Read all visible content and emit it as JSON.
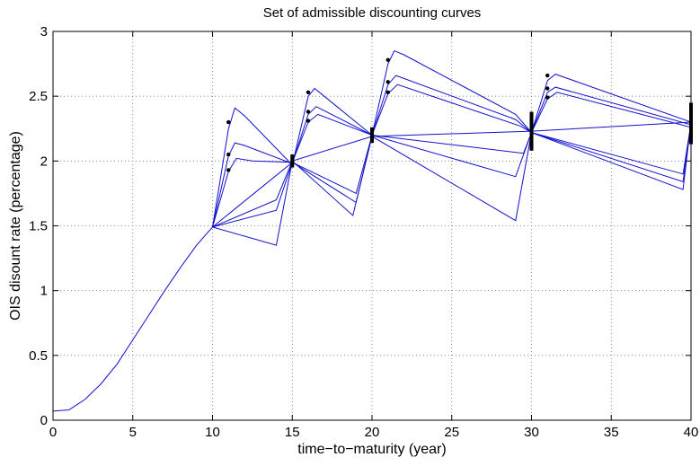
{
  "chart_data": {
    "type": "line",
    "title": "Set of admissible discounting curves",
    "xlabel": "time−to−maturity (year)",
    "ylabel": "OIS disount rate (percentage)",
    "xlim": [
      0,
      40
    ],
    "ylim": [
      0,
      3
    ],
    "xticks": [
      0,
      5,
      10,
      15,
      20,
      25,
      30,
      35,
      40
    ],
    "yticks": [
      0,
      0.5,
      1,
      1.5,
      2,
      2.5,
      3
    ],
    "xtick_labels": [
      "0",
      "5",
      "10",
      "15",
      "20",
      "25",
      "30",
      "35",
      "40"
    ],
    "ytick_labels": [
      "0",
      "0.5",
      "1",
      "1.5",
      "2",
      "2.5",
      "3"
    ],
    "grid": true,
    "line_color": "#1010cc",
    "marker_color": "#000000",
    "common_segment": [
      [
        0,
        0.07
      ],
      [
        1,
        0.08
      ],
      [
        1.5,
        0.12
      ],
      [
        2,
        0.16
      ],
      [
        3,
        0.28
      ],
      [
        4,
        0.43
      ],
      [
        5,
        0.62
      ],
      [
        6,
        0.81
      ],
      [
        7,
        1.0
      ],
      [
        8,
        1.18
      ],
      [
        9,
        1.35
      ],
      [
        10,
        1.49
      ]
    ],
    "series": [
      {
        "values": [
          [
            10,
            1.49
          ],
          [
            11,
            2.25
          ],
          [
            11.4,
            2.41
          ],
          [
            12,
            2.35
          ],
          [
            15,
            1.97
          ],
          [
            16,
            2.5
          ],
          [
            16.4,
            2.56
          ],
          [
            17,
            2.5
          ],
          [
            20,
            2.2
          ],
          [
            21,
            2.75
          ],
          [
            21.4,
            2.85
          ],
          [
            22,
            2.82
          ],
          [
            29,
            2.36
          ],
          [
            30,
            2.22
          ],
          [
            31,
            2.62
          ],
          [
            31.5,
            2.67
          ],
          [
            40,
            2.3
          ]
        ]
      },
      {
        "values": [
          [
            10,
            1.49
          ],
          [
            11,
            2.04
          ],
          [
            11.4,
            2.14
          ],
          [
            12,
            2.12
          ],
          [
            15,
            1.98
          ],
          [
            16,
            2.36
          ],
          [
            16.5,
            2.42
          ],
          [
            20,
            2.2
          ],
          [
            21,
            2.59
          ],
          [
            21.5,
            2.66
          ],
          [
            29,
            2.32
          ],
          [
            30,
            2.22
          ],
          [
            31,
            2.53
          ],
          [
            31.5,
            2.57
          ],
          [
            40,
            2.28
          ]
        ]
      },
      {
        "values": [
          [
            10,
            1.49
          ],
          [
            11,
            1.92
          ],
          [
            11.5,
            2.02
          ],
          [
            12.5,
            2.0
          ],
          [
            15,
            1.99
          ],
          [
            16,
            2.3
          ],
          [
            16.6,
            2.36
          ],
          [
            20,
            2.2
          ],
          [
            21,
            2.52
          ],
          [
            21.6,
            2.59
          ],
          [
            29.3,
            2.27
          ],
          [
            30,
            2.22
          ],
          [
            31,
            2.48
          ],
          [
            31.6,
            2.53
          ],
          [
            40,
            2.26
          ]
        ]
      },
      {
        "values": [
          [
            10,
            1.49
          ],
          [
            15,
            1.99
          ],
          [
            19,
            1.75
          ],
          [
            20,
            2.2
          ],
          [
            29.5,
            2.06
          ],
          [
            30,
            2.22
          ],
          [
            39.5,
            1.9
          ],
          [
            40,
            2.29
          ]
        ]
      },
      {
        "values": [
          [
            10,
            1.49
          ],
          [
            14,
            1.62
          ],
          [
            15,
            1.99
          ],
          [
            19,
            1.68
          ],
          [
            20,
            2.2
          ],
          [
            29,
            1.88
          ],
          [
            30,
            2.22
          ],
          [
            39.5,
            1.84
          ],
          [
            40,
            2.3
          ]
        ]
      },
      {
        "values": [
          [
            10,
            1.49
          ],
          [
            14,
            1.7
          ],
          [
            15,
            2.0
          ],
          [
            18.8,
            1.58
          ],
          [
            20,
            2.19
          ],
          [
            29,
            1.54
          ],
          [
            30,
            2.22
          ],
          [
            39.5,
            1.78
          ],
          [
            40,
            2.3
          ]
        ]
      },
      {
        "values": [
          [
            10,
            1.49
          ],
          [
            14,
            1.35
          ],
          [
            15,
            2.0
          ],
          [
            20,
            2.19
          ],
          [
            30,
            2.23
          ],
          [
            40,
            2.3
          ]
        ]
      }
    ],
    "markers": [
      [
        11,
        2.3
      ],
      [
        11,
        2.05
      ],
      [
        11,
        1.93
      ],
      [
        16,
        2.53
      ],
      [
        16,
        2.38
      ],
      [
        16,
        2.31
      ],
      [
        21,
        2.78
      ],
      [
        21,
        2.61
      ],
      [
        21,
        2.53
      ],
      [
        31,
        2.66
      ],
      [
        31,
        2.56
      ],
      [
        31,
        2.49
      ]
    ],
    "error_bars": [
      {
        "x": 15,
        "y_low": 1.95,
        "y_high": 2.05
      },
      {
        "x": 20,
        "y_low": 2.14,
        "y_high": 2.26
      },
      {
        "x": 30,
        "y_low": 2.08,
        "y_high": 2.38
      },
      {
        "x": 40,
        "y_low": 2.13,
        "y_high": 2.45
      }
    ]
  }
}
